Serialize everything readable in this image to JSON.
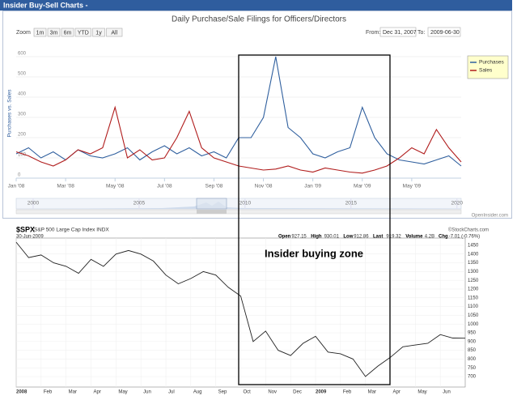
{
  "header": "Insider Buy-Sell Charts -",
  "chart_data": [
    {
      "type": "line",
      "title": "Daily Purchase/Sale Filings for Officers/Directors",
      "zoom_label": "Zoom",
      "zoom_buttons": [
        "1m",
        "3m",
        "6m",
        "YTD",
        "1y",
        "All"
      ],
      "from_label": "From:",
      "from": "Dec 31, 2007",
      "to_label": "To:",
      "to": "2009-06-30",
      "ylabel": "Purchases vs. Sales",
      "x": [
        0,
        0.5,
        1,
        1.5,
        2,
        2.5,
        3,
        3.5,
        4,
        4.5,
        5,
        5.5,
        6,
        6.5,
        7,
        7.5,
        8,
        8.5,
        9,
        9.5,
        10,
        10.5,
        11,
        11.5,
        12,
        12.5,
        13,
        13.5,
        14,
        14.5,
        15,
        15.5,
        16,
        16.5,
        17,
        17.5,
        18
      ],
      "xlim": [
        0,
        18
      ],
      "xticks": [
        {
          "value": 0,
          "label": "Jan '08"
        },
        {
          "value": 2,
          "label": "Mar '08"
        },
        {
          "value": 4,
          "label": "May '08"
        },
        {
          "value": 6,
          "label": "Jul '08"
        },
        {
          "value": 8,
          "label": "Sep '08"
        },
        {
          "value": 10,
          "label": "Nov '08"
        },
        {
          "value": 12,
          "label": "Jan '09"
        },
        {
          "value": 14,
          "label": "Mar '09"
        },
        {
          "value": 16,
          "label": "May '09"
        }
      ],
      "ylim": [
        0,
        640
      ],
      "yticks": [
        0,
        100,
        200,
        300,
        400,
        500,
        600
      ],
      "series": [
        {
          "name": "Purchases",
          "color": "#2f5f9e",
          "values": [
            120,
            150,
            100,
            130,
            90,
            140,
            110,
            100,
            120,
            150,
            90,
            130,
            160,
            120,
            150,
            110,
            130,
            100,
            200,
            200,
            300,
            600,
            250,
            200,
            120,
            100,
            130,
            150,
            350,
            200,
            120,
            90,
            80,
            70,
            90,
            110,
            60
          ]
        },
        {
          "name": "Sales",
          "color": "#b01c1c",
          "values": [
            130,
            110,
            80,
            60,
            90,
            140,
            120,
            150,
            350,
            100,
            140,
            90,
            100,
            200,
            330,
            150,
            100,
            80,
            60,
            50,
            40,
            45,
            60,
            40,
            30,
            50,
            40,
            30,
            25,
            40,
            60,
            100,
            150,
            120,
            240,
            150,
            80
          ]
        }
      ],
      "legend": "top right",
      "navigator": {
        "xlim": [
          1999.2,
          2020.2
        ],
        "xticks": [
          2000,
          2005,
          2010,
          2015,
          2020
        ]
      },
      "credit": "OpenInsider.com"
    },
    {
      "type": "line",
      "title": "$SPX",
      "subtitle": "S&P 500 Large Cap Index INDX",
      "date": "30-Jun-2009",
      "quote": [
        {
          "label": "Open",
          "value": "927.15"
        },
        {
          "label": "High",
          "value": "930.01"
        },
        {
          "label": "Low",
          "value": "912.86"
        },
        {
          "label": "Last",
          "value": "919.32"
        },
        {
          "label": "Volume",
          "value": "4.2B"
        },
        {
          "label": "Chg",
          "value": "-7.01 (-0.76%)"
        }
      ],
      "credit": "©StockCharts.com",
      "x": [
        0,
        0.5,
        1,
        1.5,
        2,
        2.5,
        3,
        3.5,
        4,
        4.5,
        5,
        5.5,
        6,
        6.5,
        7,
        7.5,
        8,
        8.5,
        9,
        9.5,
        10,
        10.5,
        11,
        11.5,
        12,
        12.5,
        13,
        13.5,
        14,
        14.5,
        15,
        15.5,
        16,
        16.5,
        17,
        17.5,
        18
      ],
      "values": [
        1468,
        1380,
        1395,
        1350,
        1330,
        1290,
        1370,
        1330,
        1400,
        1420,
        1400,
        1360,
        1280,
        1230,
        1260,
        1300,
        1280,
        1210,
        1160,
        900,
        960,
        850,
        820,
        890,
        930,
        840,
        830,
        800,
        700,
        760,
        810,
        870,
        880,
        890,
        940,
        920,
        919
      ],
      "color": "#222222",
      "xlim": [
        0,
        18
      ],
      "xticks": [
        {
          "value": 0,
          "label": "2008"
        },
        {
          "value": 1,
          "label": "Feb"
        },
        {
          "value": 2,
          "label": "Mar"
        },
        {
          "value": 3,
          "label": "Apr"
        },
        {
          "value": 4,
          "label": "May"
        },
        {
          "value": 5,
          "label": "Jun"
        },
        {
          "value": 6,
          "label": "Jul"
        },
        {
          "value": 7,
          "label": "Aug"
        },
        {
          "value": 8,
          "label": "Sep"
        },
        {
          "value": 9,
          "label": "Oct"
        },
        {
          "value": 10,
          "label": "Nov"
        },
        {
          "value": 11,
          "label": "Dec"
        },
        {
          "value": 12,
          "label": "2009"
        },
        {
          "value": 13,
          "label": "Feb"
        },
        {
          "value": 14,
          "label": "Mar"
        },
        {
          "value": 15,
          "label": "Apr"
        },
        {
          "value": 16,
          "label": "May"
        },
        {
          "value": 17,
          "label": "Jun"
        }
      ],
      "ylim": [
        640,
        1510
      ],
      "yticks": [
        700,
        750,
        800,
        850,
        900,
        950,
        1000,
        1050,
        1100,
        1150,
        1200,
        1250,
        1300,
        1350,
        1400,
        1450
      ],
      "annotation": "Insider buying zone"
    }
  ]
}
